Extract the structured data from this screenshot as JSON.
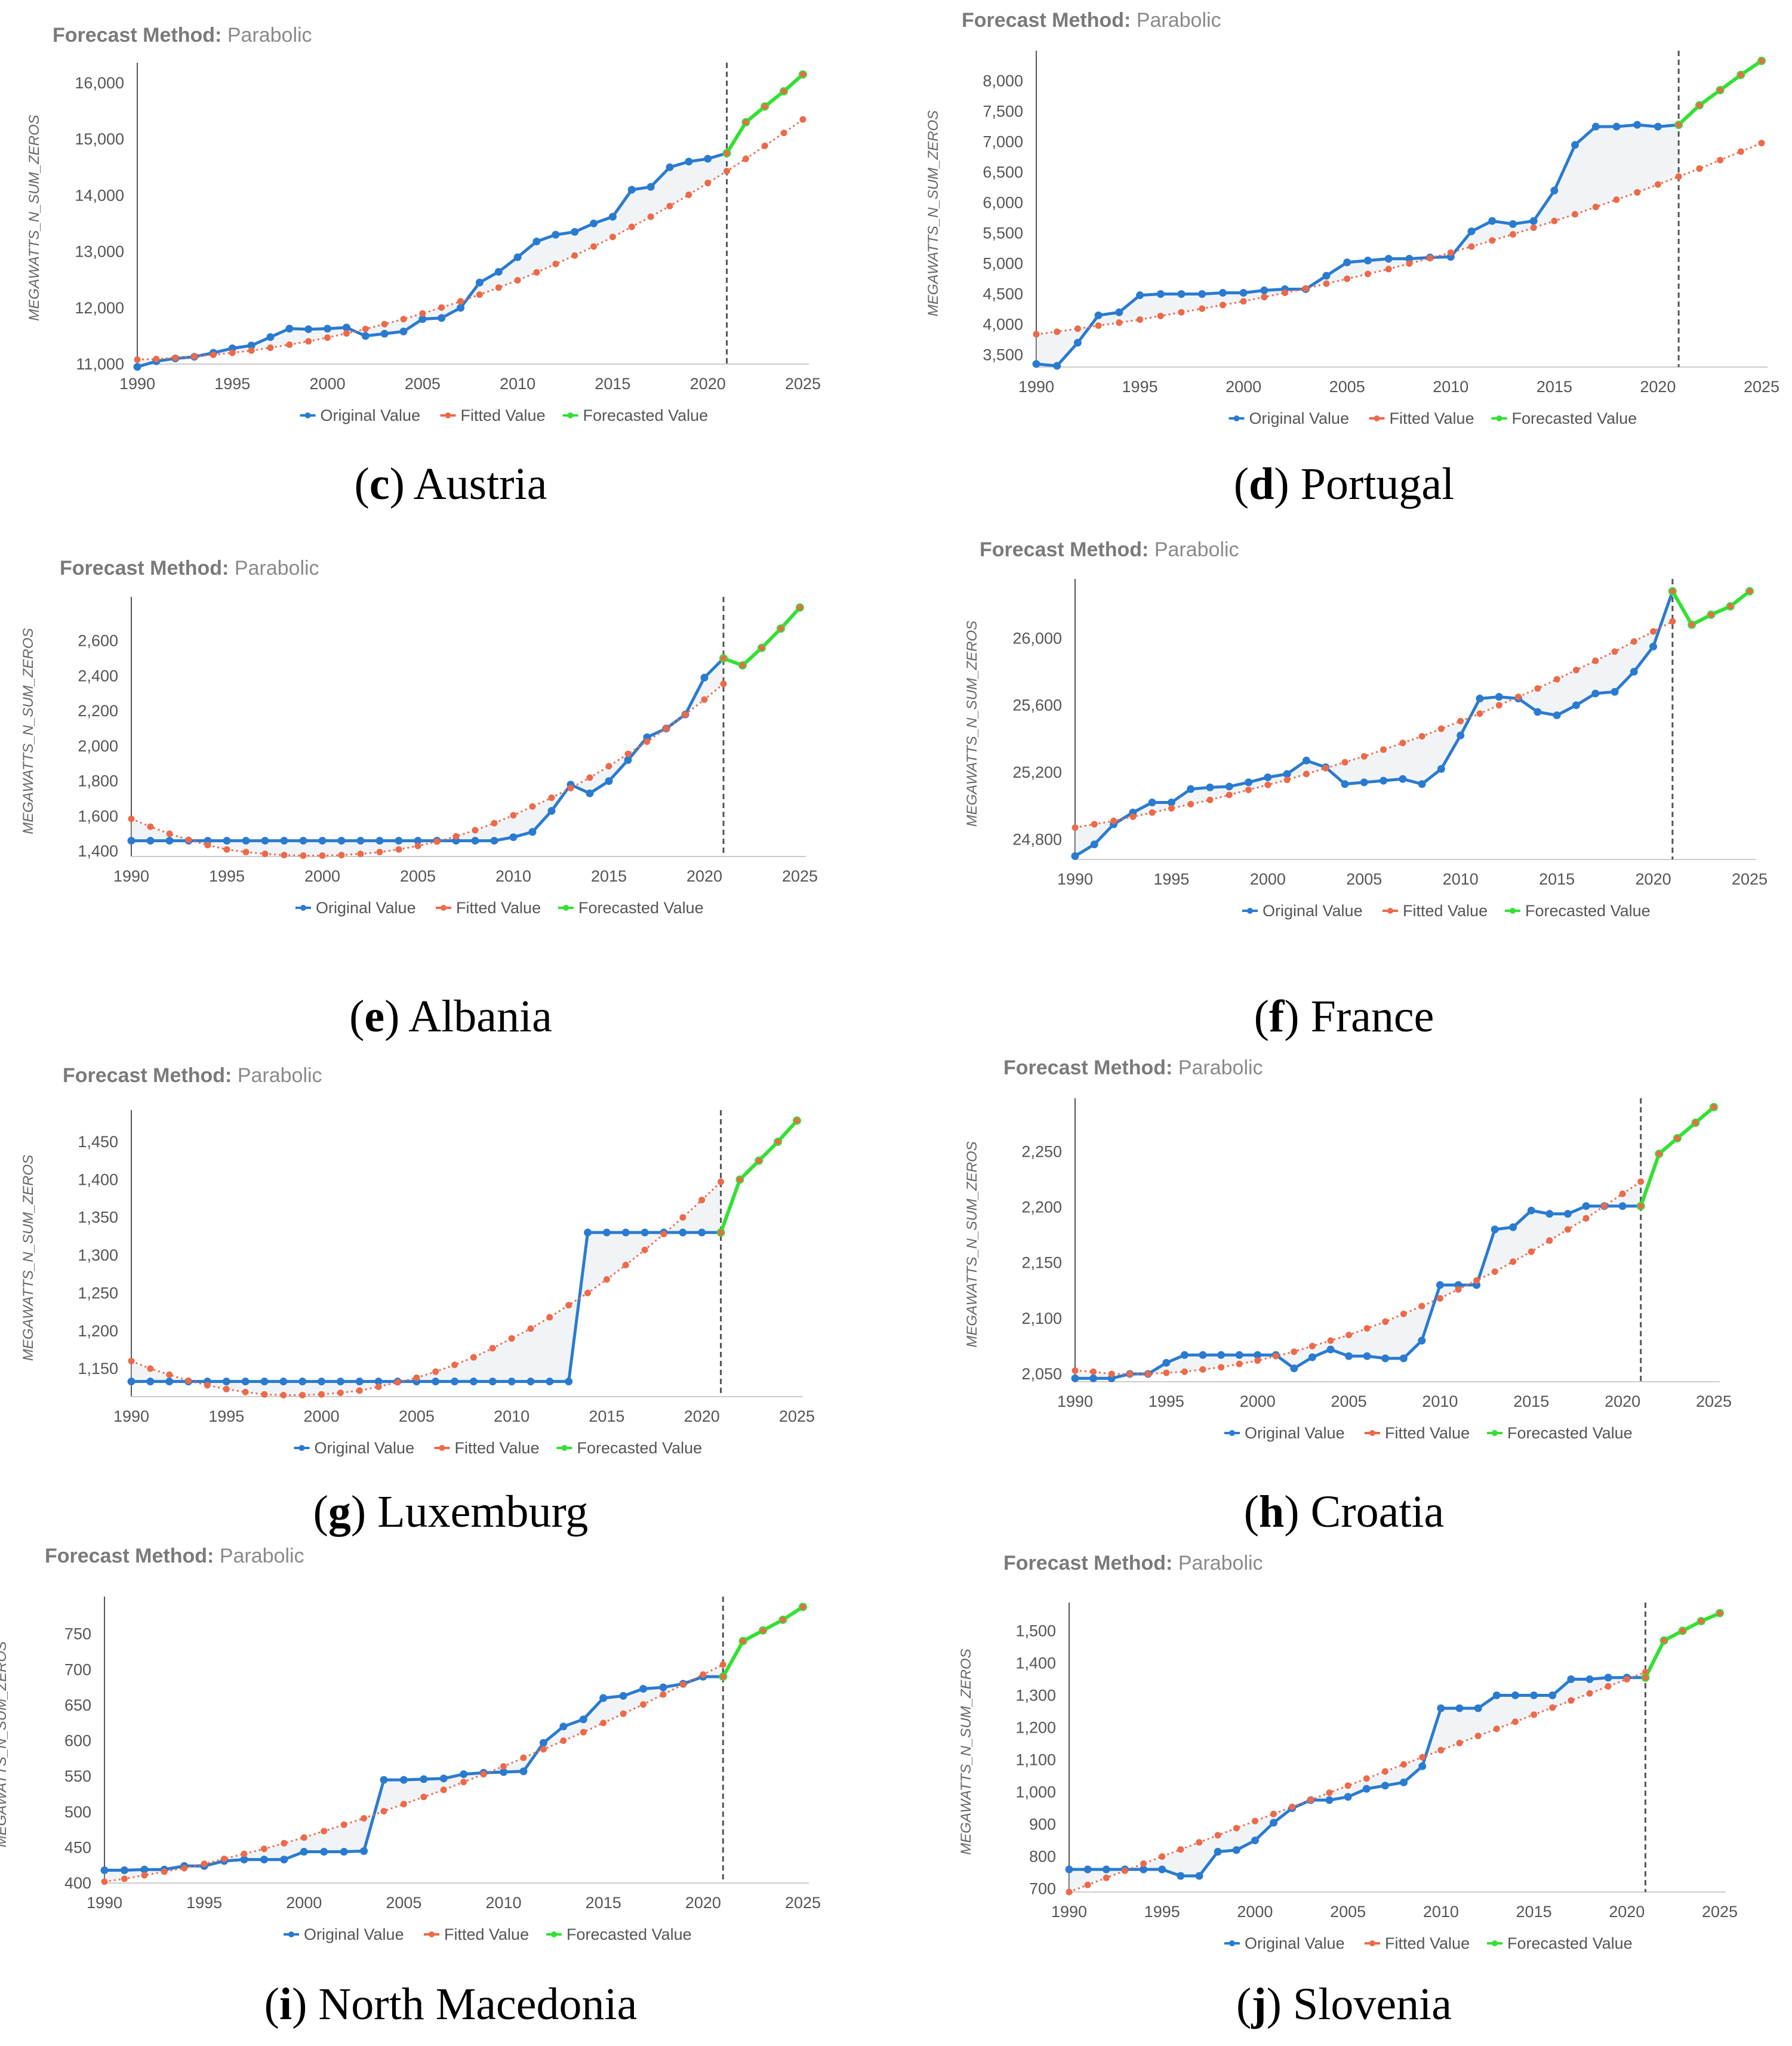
{
  "colors": {
    "original": "#2a7bd0",
    "fitted": "#ec6a4a",
    "forecast": "#33e033",
    "axis": "#555555",
    "divider": "#555555"
  },
  "legend": {
    "original": "Original Value",
    "fitted": "Fitted Value",
    "forecast": "Forecasted Value"
  },
  "chart_data": [
    {
      "id": "c",
      "letter": "c",
      "country": "Austria",
      "method_label": "Forecast Method:",
      "method_value": "Parabolic",
      "type": "line",
      "ylabel": "MEGAWATTS_N_SUM_ZEROS",
      "xlim": [
        1990,
        2025
      ],
      "ylim": [
        11000,
        16200
      ],
      "forecast_start": 2021,
      "x_ticks": [
        "1990",
        "1995",
        "2000",
        "2005",
        "2010",
        "2015",
        "2020",
        "2025"
      ],
      "y_ticks": [
        11000,
        12000,
        13000,
        14000,
        15000,
        16000
      ],
      "y_tick_labels": [
        "11,000",
        "12,000",
        "13,000",
        "14,000",
        "15,000",
        "16,000"
      ],
      "original": [
        10950,
        11050,
        11100,
        11130,
        11200,
        11280,
        11330,
        11480,
        11630,
        11620,
        11630,
        11650,
        11500,
        11540,
        11580,
        11800,
        11820,
        12000,
        12450,
        12640,
        12900,
        13180,
        13300,
        13350,
        13500,
        13620,
        14100,
        14150,
        14500,
        14600,
        14650,
        14750
      ],
      "fitted_start": 1990,
      "fitted": [
        11080,
        11090,
        11110,
        11135,
        11165,
        11200,
        11240,
        11290,
        11345,
        11405,
        11470,
        11545,
        11625,
        11710,
        11800,
        11900,
        12005,
        12115,
        12235,
        12360,
        12490,
        12630,
        12780,
        12930,
        13090,
        13260,
        13440,
        13620,
        13810,
        14010,
        14220,
        14430,
        14650,
        14880,
        15110,
        15350
      ],
      "forecast": [
        [
          2021,
          14750
        ],
        [
          2022,
          15300
        ],
        [
          2023,
          15580
        ],
        [
          2024,
          15850
        ],
        [
          2025,
          16150
        ]
      ]
    },
    {
      "id": "d",
      "letter": "d",
      "country": "Portugal",
      "method_label": "Forecast Method:",
      "method_value": "Parabolic",
      "type": "line",
      "ylabel": "MEGAWATTS_N_SUM_ZEROS",
      "xlim": [
        1990,
        2025
      ],
      "ylim": [
        3300,
        8350
      ],
      "forecast_start": 2021,
      "x_ticks": [
        "1990",
        "1995",
        "2000",
        "2005",
        "2010",
        "2015",
        "2020",
        "2025"
      ],
      "y_ticks": [
        3500,
        4000,
        4500,
        5000,
        5500,
        6000,
        6500,
        7000,
        7500,
        8000
      ],
      "y_tick_labels": [
        "3,500",
        "4,000",
        "4,500",
        "5,000",
        "5,500",
        "6,000",
        "6,500",
        "7,000",
        "7,500",
        "8,000"
      ],
      "original": [
        3350,
        3320,
        3700,
        4150,
        4200,
        4480,
        4500,
        4500,
        4500,
        4520,
        4520,
        4560,
        4580,
        4580,
        4800,
        5020,
        5050,
        5080,
        5080,
        5100,
        5110,
        5530,
        5700,
        5650,
        5700,
        6200,
        6950,
        7250,
        7250,
        7280,
        7250,
        7280
      ],
      "fitted_start": 1990,
      "fitted": [
        3840,
        3880,
        3930,
        3980,
        4030,
        4080,
        4140,
        4200,
        4260,
        4320,
        4380,
        4450,
        4520,
        4590,
        4670,
        4750,
        4830,
        4910,
        5000,
        5090,
        5180,
        5280,
        5380,
        5480,
        5590,
        5700,
        5810,
        5930,
        6050,
        6170,
        6300,
        6430,
        6560,
        6700,
        6840,
        6980
      ],
      "forecast": [
        [
          2021,
          7280
        ],
        [
          2022,
          7600
        ],
        [
          2023,
          7850
        ],
        [
          2024,
          8100
        ],
        [
          2025,
          8330
        ]
      ]
    },
    {
      "id": "e",
      "letter": "e",
      "country": "Albania",
      "method_label": "Forecast Method:",
      "method_value": "Parabolic",
      "type": "line",
      "ylabel": "MEGAWATTS_N_SUM_ZEROS",
      "xlim": [
        1990,
        2025
      ],
      "ylim": [
        1370,
        2800
      ],
      "forecast_start": 2021,
      "x_ticks": [
        "1990",
        "1995",
        "2000",
        "2005",
        "2010",
        "2015",
        "2020",
        "2025"
      ],
      "y_ticks": [
        1400,
        1600,
        1800,
        2000,
        2200,
        2400,
        2600
      ],
      "y_tick_labels": [
        "1,400",
        "1,600",
        "1,800",
        "2,000",
        "2,200",
        "2,400",
        "2,600"
      ],
      "original": [
        1460,
        1460,
        1460,
        1460,
        1460,
        1460,
        1460,
        1460,
        1460,
        1460,
        1460,
        1460,
        1460,
        1460,
        1460,
        1460,
        1460,
        1460,
        1460,
        1460,
        1480,
        1510,
        1630,
        1780,
        1730,
        1800,
        1920,
        2050,
        2100,
        2180,
        2390,
        2500
      ],
      "fitted_start": 1990,
      "fitted": [
        1585,
        1540,
        1500,
        1465,
        1435,
        1410,
        1395,
        1385,
        1378,
        1375,
        1375,
        1378,
        1385,
        1395,
        1410,
        1430,
        1455,
        1485,
        1520,
        1560,
        1605,
        1655,
        1705,
        1760,
        1820,
        1885,
        1955,
        2025,
        2100,
        2180,
        2265,
        2355
      ],
      "forecast": [
        [
          2021,
          2500
        ],
        [
          2022,
          2460
        ],
        [
          2023,
          2560
        ],
        [
          2024,
          2670
        ],
        [
          2025,
          2790
        ]
      ]
    },
    {
      "id": "f",
      "letter": "f",
      "country": "France",
      "method_label": "Forecast Method:",
      "method_value": "Parabolic",
      "type": "line",
      "ylabel": "MEGAWATTS_N_SUM_ZEROS",
      "xlim": [
        1990,
        2025
      ],
      "ylim": [
        24680,
        26300
      ],
      "forecast_start": 2021,
      "x_ticks": [
        "1990",
        "1995",
        "2000",
        "2005",
        "2010",
        "2015",
        "2020",
        "2025"
      ],
      "y_ticks": [
        24800,
        25200,
        25600,
        26000
      ],
      "y_tick_labels": [
        "24,800",
        "25,200",
        "25,600",
        "26,000"
      ],
      "original": [
        24700,
        24770,
        24890,
        24960,
        25020,
        25020,
        25100,
        25110,
        25115,
        25140,
        25170,
        25190,
        25270,
        25230,
        25130,
        25140,
        25150,
        25160,
        25130,
        25220,
        25420,
        25640,
        25650,
        25640,
        25560,
        25540,
        25600,
        25670,
        25680,
        25800,
        25950,
        26280
      ],
      "fitted_start": 1990,
      "fitted": [
        24870,
        24890,
        24910,
        24935,
        24960,
        24985,
        25010,
        25035,
        25065,
        25095,
        25125,
        25155,
        25190,
        25225,
        25260,
        25295,
        25335,
        25375,
        25415,
        25460,
        25505,
        25550,
        25600,
        25650,
        25700,
        25755,
        25810,
        25865,
        25920,
        25980,
        26040,
        26100
      ],
      "forecast": [
        [
          2021,
          26280
        ],
        [
          2022,
          26080
        ],
        [
          2023,
          26140
        ],
        [
          2024,
          26190
        ],
        [
          2025,
          26280
        ]
      ]
    },
    {
      "id": "g",
      "letter": "g",
      "country": "Luxemburg",
      "method_label": "Forecast Method:",
      "method_value": "Parabolic",
      "type": "line",
      "ylabel": "MEGAWATTS_N_SUM_ZEROS",
      "xlim": [
        1990,
        2025
      ],
      "ylim": [
        1113,
        1480
      ],
      "forecast_start": 2021,
      "x_ticks": [
        "1990",
        "1995",
        "2000",
        "2005",
        "2010",
        "2015",
        "2020",
        "2025"
      ],
      "y_ticks": [
        1150,
        1200,
        1250,
        1300,
        1350,
        1400,
        1450
      ],
      "y_tick_labels": [
        "1,150",
        "1,200",
        "1,250",
        "1,300",
        "1,350",
        "1,400",
        "1,450"
      ],
      "original": [
        1133,
        1133,
        1133,
        1133,
        1133,
        1133,
        1133,
        1133,
        1133,
        1133,
        1133,
        1133,
        1133,
        1133,
        1133,
        1133,
        1133,
        1133,
        1133,
        1133,
        1133,
        1133,
        1133,
        1133,
        1330,
        1330,
        1330,
        1330,
        1330,
        1330,
        1330,
        1330
      ],
      "fitted_start": 1990,
      "fitted": [
        1160,
        1150,
        1142,
        1134,
        1128,
        1123,
        1119,
        1116,
        1115,
        1115,
        1116,
        1118,
        1121,
        1126,
        1132,
        1138,
        1146,
        1155,
        1165,
        1177,
        1190,
        1203,
        1218,
        1234,
        1250,
        1268,
        1287,
        1307,
        1328,
        1350,
        1373,
        1397
      ],
      "forecast": [
        [
          2021,
          1330
        ],
        [
          2022,
          1400
        ],
        [
          2023,
          1425
        ],
        [
          2024,
          1450
        ],
        [
          2025,
          1478
        ]
      ]
    },
    {
      "id": "h",
      "letter": "h",
      "country": "Croatia",
      "method_label": "Forecast Method:",
      "method_value": "Parabolic",
      "type": "line",
      "ylabel": "MEGAWATTS_N_SUM_ZEROS",
      "xlim": [
        1990,
        2025
      ],
      "ylim": [
        2043,
        2290
      ],
      "forecast_start": 2021,
      "x_ticks": [
        "1990",
        "1995",
        "2000",
        "2005",
        "2010",
        "2015",
        "2020",
        "2025"
      ],
      "y_ticks": [
        2050,
        2100,
        2150,
        2200,
        2250
      ],
      "y_tick_labels": [
        "2,050",
        "2,100",
        "2,150",
        "2,200",
        "2,250"
      ],
      "original": [
        2046,
        2046,
        2046,
        2050,
        2050,
        2060,
        2067,
        2067,
        2067,
        2067,
        2067,
        2067,
        2055,
        2065,
        2072,
        2066,
        2066,
        2064,
        2064,
        2080,
        2130,
        2130,
        2130,
        2180,
        2182,
        2197,
        2194,
        2194,
        2201,
        2201,
        2201,
        2201
      ],
      "fitted_start": 1990,
      "fitted": [
        2053,
        2052,
        2050,
        2050,
        2050,
        2051,
        2052,
        2054,
        2056,
        2059,
        2062,
        2066,
        2070,
        2075,
        2080,
        2085,
        2091,
        2097,
        2104,
        2111,
        2118,
        2126,
        2134,
        2142,
        2151,
        2160,
        2170,
        2180,
        2190,
        2201,
        2212,
        2223
      ],
      "forecast": [
        [
          2021,
          2201
        ],
        [
          2022,
          2248
        ],
        [
          2023,
          2262
        ],
        [
          2024,
          2276
        ],
        [
          2025,
          2290
        ]
      ]
    },
    {
      "id": "i",
      "letter": "i",
      "country": "North Macedonia",
      "method_label": "Forecast Method:",
      "method_value": "Parabolic",
      "type": "line",
      "ylabel": "MEGAWATTS_N_SUM_ZEROS",
      "xlim": [
        1990,
        2025
      ],
      "ylim": [
        400,
        790
      ],
      "forecast_start": 2021,
      "x_ticks": [
        "1990",
        "1995",
        "2000",
        "2005",
        "2010",
        "2015",
        "2020",
        "2025"
      ],
      "y_ticks": [
        400,
        450,
        500,
        550,
        600,
        650,
        700,
        750
      ],
      "y_tick_labels": [
        "400",
        "450",
        "500",
        "550",
        "600",
        "650",
        "700",
        "750"
      ],
      "original": [
        418,
        418,
        419,
        419,
        424,
        424,
        431,
        433,
        433,
        433,
        444,
        444,
        444,
        445,
        545,
        545,
        546,
        547,
        553,
        555,
        556,
        557,
        597,
        620,
        630,
        660,
        663,
        673,
        675,
        680,
        690,
        690
      ],
      "fitted_start": 1990,
      "fitted": [
        402,
        406,
        411,
        416,
        421,
        427,
        434,
        441,
        448,
        456,
        464,
        473,
        482,
        491,
        501,
        511,
        521,
        531,
        542,
        553,
        564,
        576,
        588,
        600,
        612,
        625,
        638,
        651,
        665,
        679,
        693,
        707
      ],
      "forecast": [
        [
          2021,
          690
        ],
        [
          2022,
          740
        ],
        [
          2023,
          755
        ],
        [
          2024,
          770
        ],
        [
          2025,
          788
        ]
      ]
    },
    {
      "id": "j",
      "letter": "j",
      "country": "Slovenia",
      "method_label": "Forecast Method:",
      "method_value": "Parabolic",
      "type": "line",
      "ylabel": "MEGAWATTS_N_SUM_ZEROS",
      "xlim": [
        1990,
        2025
      ],
      "ylim": [
        690,
        1560
      ],
      "forecast_start": 2021,
      "x_ticks": [
        "1990",
        "1995",
        "2000",
        "2005",
        "2010",
        "2015",
        "2020",
        "2025"
      ],
      "y_ticks": [
        700,
        800,
        900,
        1000,
        1100,
        1200,
        1300,
        1400,
        1500
      ],
      "y_tick_labels": [
        "700",
        "800",
        "900",
        "1,000",
        "1,100",
        "1,200",
        "1,300",
        "1,400",
        "1,500"
      ],
      "original": [
        760,
        760,
        760,
        760,
        760,
        760,
        740,
        740,
        815,
        820,
        850,
        905,
        950,
        975,
        975,
        985,
        1010,
        1020,
        1030,
        1080,
        1260,
        1260,
        1260,
        1300,
        1300,
        1300,
        1300,
        1350,
        1350,
        1355,
        1355,
        1355
      ],
      "fitted_start": 1990,
      "fitted": [
        690,
        712,
        734,
        756,
        778,
        800,
        822,
        844,
        866,
        888,
        910,
        932,
        954,
        976,
        998,
        1020,
        1042,
        1064,
        1086,
        1108,
        1130,
        1152,
        1174,
        1196,
        1218,
        1240,
        1262,
        1284,
        1306,
        1328,
        1350,
        1372
      ],
      "forecast": [
        [
          2021,
          1355
        ],
        [
          2022,
          1470
        ],
        [
          2023,
          1500
        ],
        [
          2024,
          1530
        ],
        [
          2025,
          1555
        ]
      ]
    }
  ]
}
